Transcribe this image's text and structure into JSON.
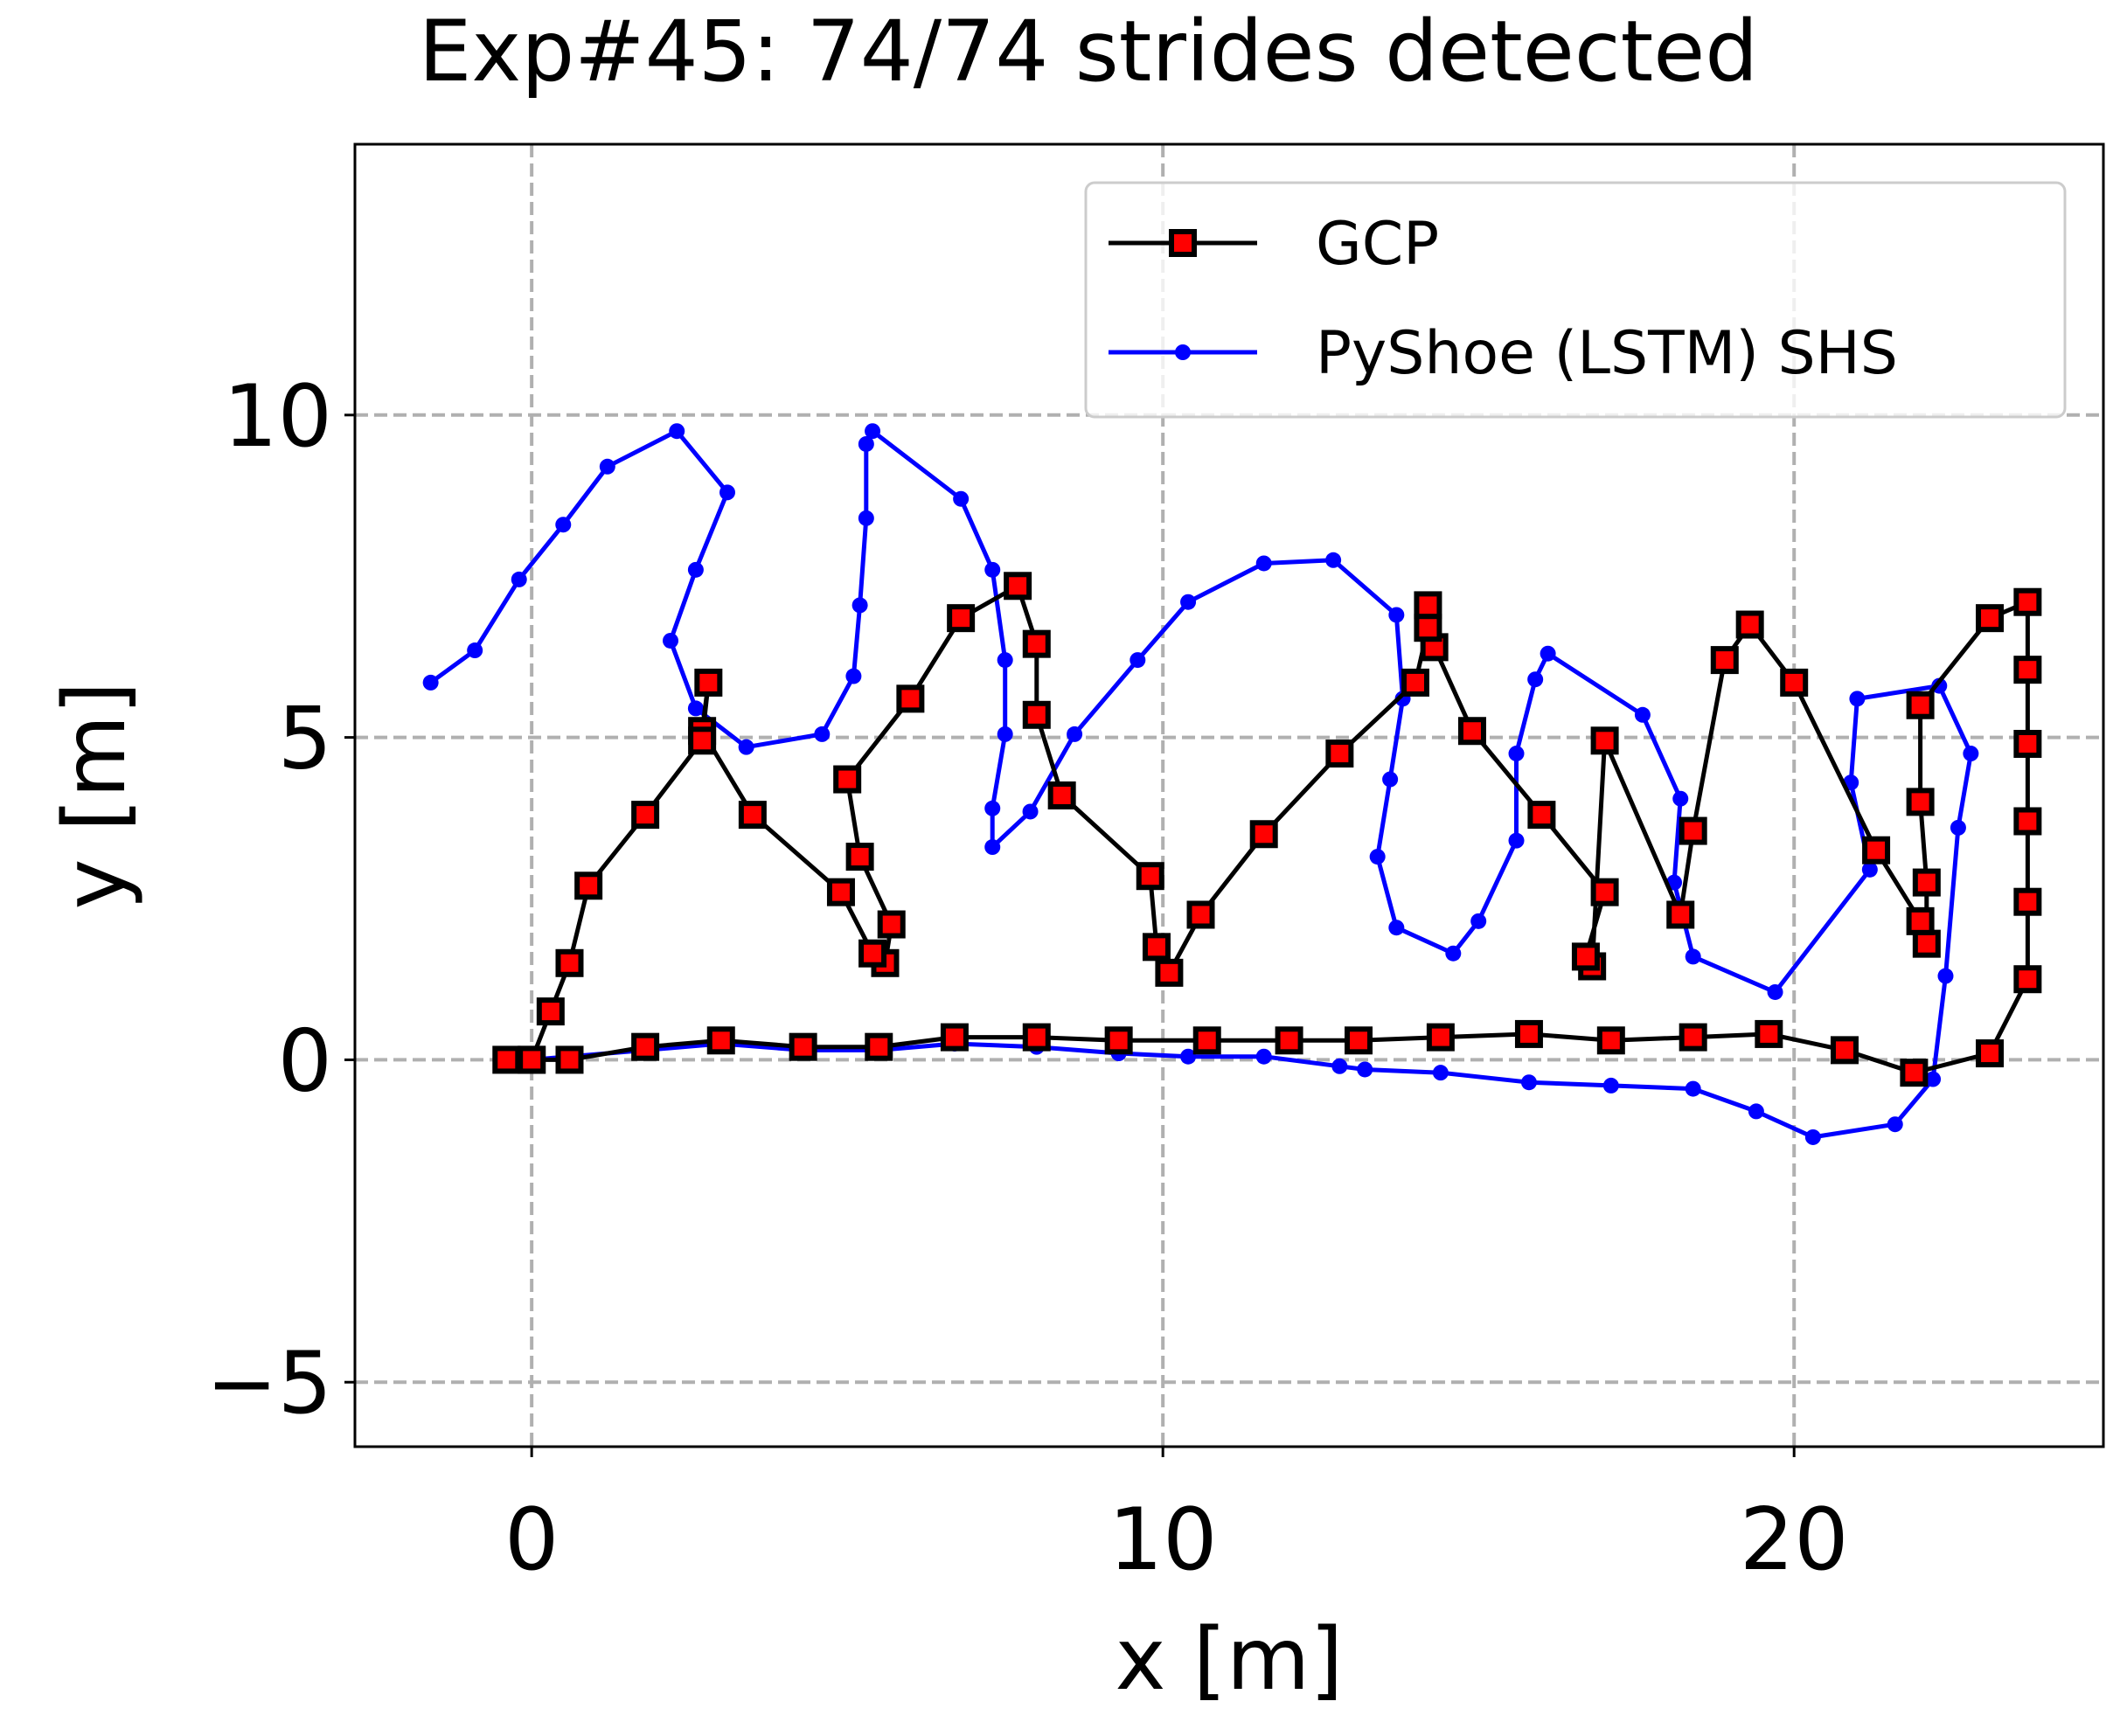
{
  "chart_data": {
    "type": "line",
    "title": "Exp#45: 74/74 strides detected",
    "xlabel": "x [m]",
    "ylabel": "y [m]",
    "xlim": [
      -2.8,
      24.9
    ],
    "ylim": [
      -6.0,
      14.2
    ],
    "xticks": [
      0,
      10,
      20
    ],
    "xtick_labels": [
      "0",
      "10",
      "20"
    ],
    "yticks": [
      -5,
      0,
      5,
      10
    ],
    "ytick_labels": [
      "−5",
      "0",
      "5",
      "10"
    ],
    "grid": true,
    "legend_position": "top-right",
    "series": [
      {
        "name": "GCP",
        "color": "#000000",
        "marker": "square",
        "marker_color": "#ff0000",
        "x": [
          0,
          0.6,
          1.8,
          3.0,
          4.3,
          5.5,
          6.7,
          8.0,
          9.3,
          10.7,
          12.0,
          13.1,
          14.4,
          15.8,
          17.1,
          18.4,
          19.6,
          20.8,
          21.9,
          23.1,
          23.7,
          23.7,
          23.7,
          23.7,
          23.7,
          23.7,
          23.1,
          22.0,
          22.0,
          22.1,
          22.1,
          22.0,
          21.3,
          20.0,
          19.3,
          18.9,
          18.4,
          18.2,
          17.0,
          16.8,
          16.7,
          17.0,
          16.0,
          14.9,
          14.3,
          14.2,
          14.2,
          14.0,
          12.8,
          11.6,
          10.6,
          10.1,
          9.9,
          9.8,
          8.4,
          8.0,
          8.0,
          7.7,
          6.8,
          6.0,
          5.0,
          5.2,
          5.7,
          5.6,
          5.4,
          4.9,
          3.5,
          2.7,
          2.8,
          2.7,
          1.8,
          0.9,
          0.6,
          0.3,
          0,
          -0.4
        ],
        "y": [
          0,
          0,
          0.2,
          0.3,
          0.2,
          0.2,
          0.35,
          0.35,
          0.3,
          0.3,
          0.3,
          0.3,
          0.35,
          0.4,
          0.3,
          0.35,
          0.4,
          0.15,
          -0.2,
          0.1,
          1.25,
          2.45,
          3.7,
          4.9,
          6.05,
          7.1,
          6.85,
          5.5,
          4.0,
          2.75,
          1.8,
          2.15,
          3.25,
          5.85,
          6.75,
          6.2,
          3.55,
          2.25,
          4.95,
          1.45,
          1.6,
          2.6,
          3.8,
          5.1,
          6.4,
          7.05,
          6.7,
          5.85,
          4.75,
          3.5,
          2.25,
          1.35,
          1.75,
          2.85,
          4.1,
          5.35,
          6.45,
          7.35,
          6.85,
          5.6,
          4.35,
          3.15,
          2.1,
          1.5,
          1.65,
          2.6,
          3.8,
          5.1,
          5.85,
          4.95,
          3.8,
          2.7,
          1.5,
          0.75,
          0,
          0
        ]
      },
      {
        "name": "PyShoe (LSTM) SHS",
        "color": "#0000ff",
        "marker": "dot",
        "marker_color": "#0000ff",
        "x": [
          0,
          1.8,
          3.0,
          4.3,
          5.5,
          6.7,
          8.0,
          9.3,
          10.4,
          11.6,
          12.8,
          13.2,
          14.4,
          15.8,
          17.1,
          18.4,
          19.4,
          20.3,
          21.6,
          22.2,
          22.4,
          22.6,
          22.8,
          22.3,
          21.0,
          20.9,
          21.2,
          19.7,
          18.4,
          18.1,
          18.2,
          17.6,
          16.1,
          15.9,
          15.6,
          15.6,
          15.0,
          14.6,
          13.7,
          13.4,
          13.6,
          13.8,
          13.7,
          12.7,
          11.6,
          10.4,
          9.6,
          8.6,
          7.9,
          7.3,
          7.3,
          7.5,
          7.5,
          7.3,
          6.8,
          5.4,
          5.3,
          5.3,
          5.2,
          5.1,
          4.6,
          3.4,
          2.6,
          2.2,
          2.6,
          3.1,
          2.3,
          1.2,
          0.5,
          -0.2,
          -0.9,
          -1.6
        ],
        "y": [
          0,
          0.15,
          0.25,
          0.15,
          0.15,
          0.25,
          0.2,
          0.1,
          0.05,
          0.05,
          -0.1,
          -0.15,
          -0.2,
          -0.35,
          -0.4,
          -0.45,
          -0.8,
          -1.2,
          -1.0,
          -0.3,
          1.3,
          3.6,
          4.75,
          5.8,
          5.6,
          4.3,
          2.95,
          1.05,
          1.6,
          2.75,
          4.05,
          5.35,
          6.3,
          5.9,
          4.75,
          3.4,
          2.15,
          1.65,
          2.05,
          3.15,
          4.35,
          5.6,
          6.9,
          7.75,
          7.7,
          7.1,
          6.2,
          5.05,
          3.85,
          3.3,
          3.9,
          5.05,
          6.2,
          7.6,
          8.7,
          9.75,
          9.55,
          8.4,
          7.05,
          5.95,
          5.05,
          4.85,
          5.45,
          6.5,
          7.6,
          8.8,
          9.75,
          9.2,
          8.3,
          7.45,
          6.35,
          5.85
        ]
      }
    ]
  }
}
